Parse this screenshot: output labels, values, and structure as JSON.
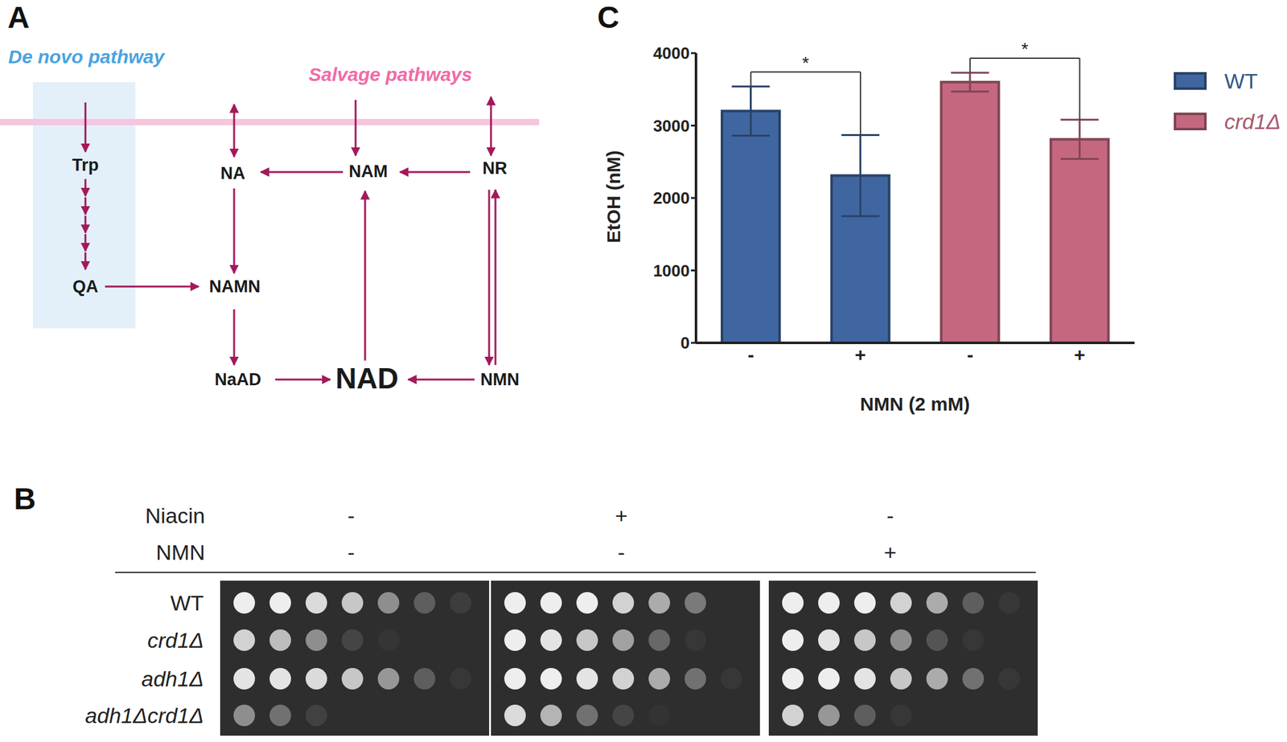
{
  "panel_labels": [
    "A",
    "B",
    "C"
  ],
  "diagram": {
    "de_novo_title": "De novo pathway",
    "salvage_title": "Salvage pathways",
    "nodes": [
      {
        "id": "Trp",
        "label": "Trp"
      },
      {
        "id": "QA",
        "label": "QA"
      },
      {
        "id": "NA",
        "label": "NA"
      },
      {
        "id": "NAM",
        "label": "NAM"
      },
      {
        "id": "NR",
        "label": "NR"
      },
      {
        "id": "NAMN",
        "label": "NAMN"
      },
      {
        "id": "NaAD",
        "label": "NaAD"
      },
      {
        "id": "NAD",
        "label": "NAD"
      },
      {
        "id": "NMN",
        "label": "NMN"
      }
    ]
  },
  "spot_assay": {
    "treatments": [
      {
        "name": "Niacin",
        "values": [
          "-",
          "+",
          "-"
        ]
      },
      {
        "name": "NMN",
        "values": [
          "-",
          "-",
          "+"
        ]
      }
    ],
    "strains": [
      "WT",
      "crd1Δ",
      "adh1Δ",
      "adh1Δcrd1Δ"
    ],
    "spot_growth": [
      [
        [
          1,
          1,
          0.9,
          0.8,
          0.5,
          0.25,
          0.08
        ],
        [
          0.85,
          0.75,
          0.5,
          0.12,
          0.04,
          0,
          0
        ],
        [
          0.95,
          0.95,
          0.9,
          0.8,
          0.55,
          0.25,
          0.05
        ],
        [
          0.5,
          0.35,
          0.1,
          0,
          0,
          0,
          0
        ]
      ],
      [
        [
          1,
          1,
          1,
          0.85,
          0.65,
          0.4,
          0
        ],
        [
          1,
          0.95,
          0.8,
          0.6,
          0.3,
          0.05,
          0
        ],
        [
          1,
          1,
          0.95,
          0.85,
          0.65,
          0.35,
          0.05
        ],
        [
          0.9,
          0.7,
          0.35,
          0.12,
          0.03,
          0,
          0
        ]
      ],
      [
        [
          1,
          1,
          1,
          0.85,
          0.65,
          0.25,
          0.05
        ],
        [
          1,
          0.95,
          0.8,
          0.5,
          0.2,
          0.05,
          0
        ],
        [
          1,
          1,
          0.95,
          0.8,
          0.65,
          0.35,
          0.05
        ],
        [
          0.85,
          0.55,
          0.25,
          0.05,
          0,
          0,
          0
        ]
      ]
    ]
  },
  "chart_data": {
    "type": "bar",
    "categories": [
      "-",
      "+",
      "-",
      "+"
    ],
    "x_label": "NMN (2 mM)",
    "y_label": "EtOH (nM)",
    "ylim": [
      0,
      4000
    ],
    "yticks": [
      0,
      1000,
      2000,
      3000,
      4000
    ],
    "grid": false,
    "legend": "upper right",
    "series": [
      {
        "name": "WT",
        "color": "#3f66a0",
        "values": [
          3200,
          2310,
          null,
          null
        ],
        "errors": [
          340,
          560,
          null,
          null
        ]
      },
      {
        "name": "crd1Δ",
        "color": "#c5687f",
        "values": [
          null,
          null,
          3600,
          2810
        ],
        "errors": [
          null,
          null,
          130,
          270
        ]
      }
    ],
    "annotations": [
      {
        "from": 0,
        "to": 1,
        "label": "*"
      },
      {
        "from": 2,
        "to": 3,
        "label": "*"
      }
    ]
  }
}
